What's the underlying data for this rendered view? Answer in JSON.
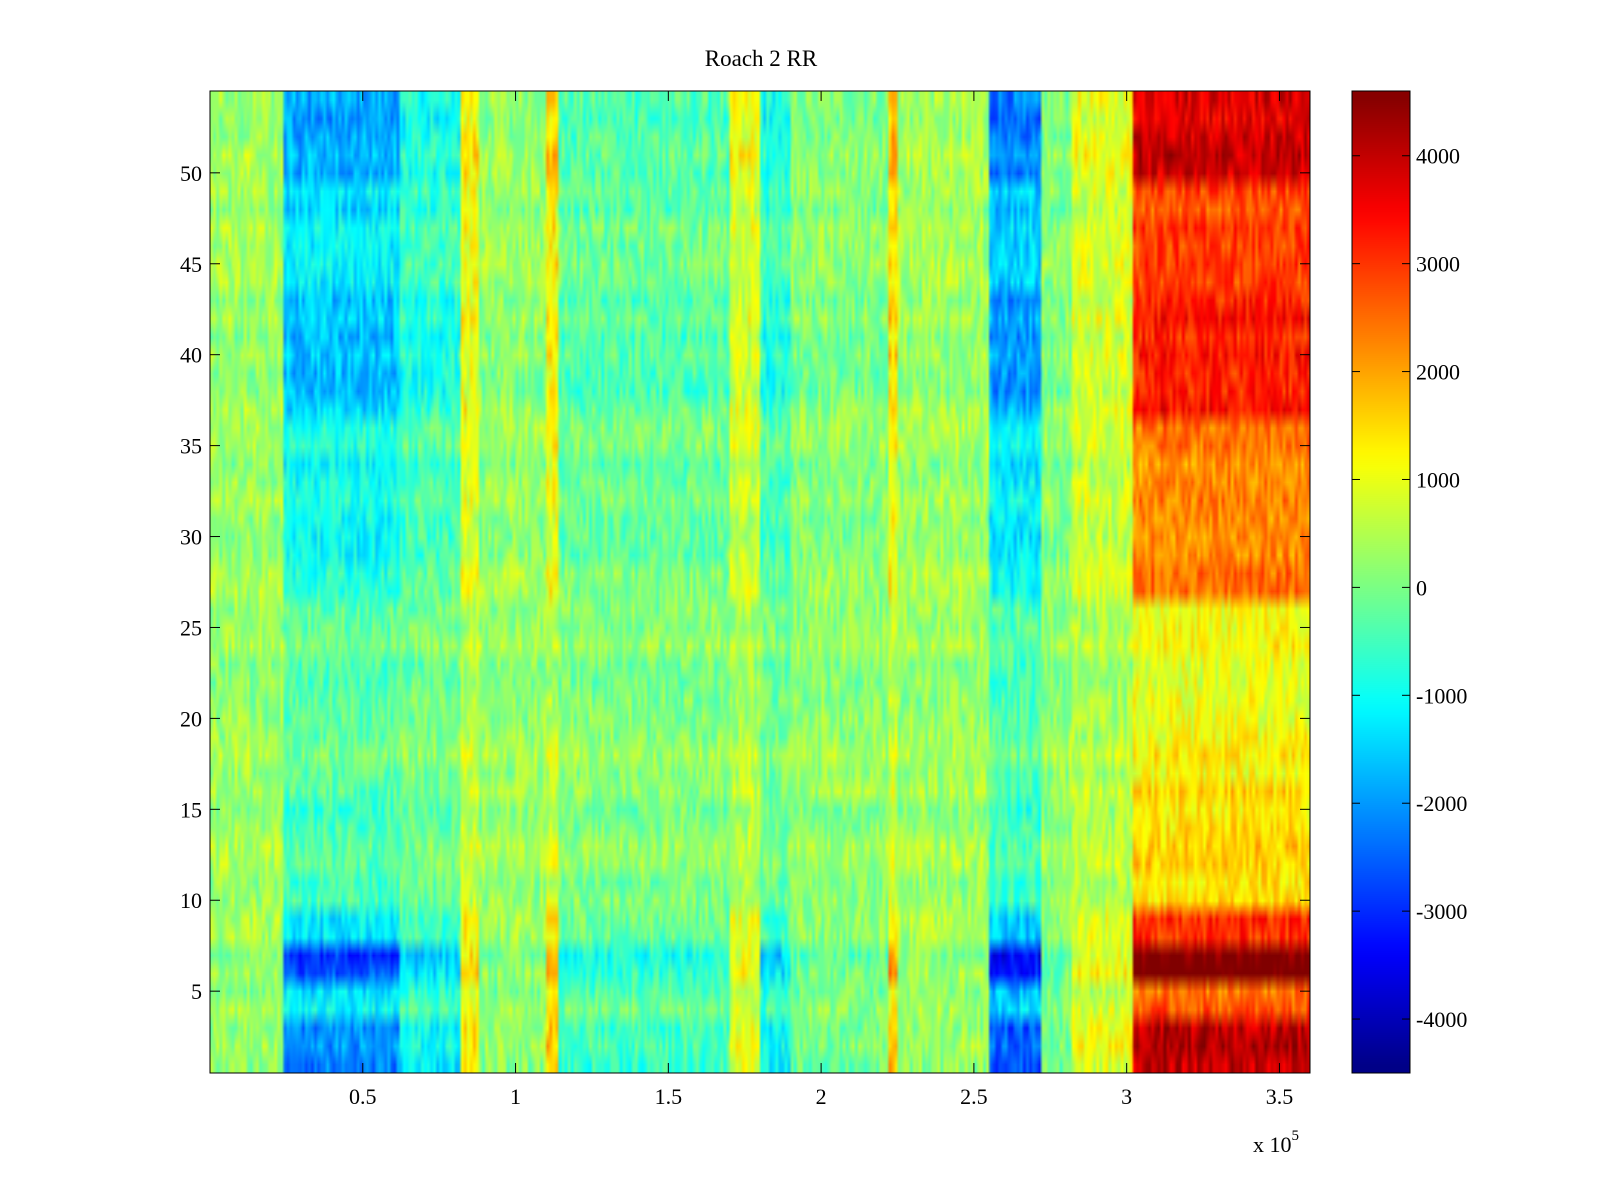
{
  "chart_data": {
    "type": "heatmap",
    "title": "Roach 2 RR",
    "xlabel": "",
    "ylabel": "",
    "x_exponent_label": "x 10",
    "x_exponent_power": "5",
    "xlim": [
      0,
      3.6
    ],
    "ylim": [
      0.5,
      54.5
    ],
    "rows": 54,
    "columns": 360,
    "x_ticks": [
      0.5,
      1,
      1.5,
      2,
      2.5,
      3,
      3.5
    ],
    "x_tick_labels": [
      "0.5",
      "1",
      "1.5",
      "2",
      "2.5",
      "3",
      "3.5"
    ],
    "y_ticks": [
      5,
      10,
      15,
      20,
      25,
      30,
      35,
      40,
      45,
      50
    ],
    "y_tick_labels": [
      "5",
      "10",
      "15",
      "20",
      "25",
      "30",
      "35",
      "40",
      "45",
      "50"
    ],
    "colormap": "jet",
    "clim": [
      -4500,
      4600
    ],
    "colorbar": {
      "ticks": [
        -4000,
        -3000,
        -2000,
        -1000,
        0,
        1000,
        2000,
        3000,
        4000
      ],
      "tick_labels": [
        "-4000",
        "-3000",
        "-2000",
        "-1000",
        "0",
        "1000",
        "2000",
        "3000",
        "4000"
      ]
    },
    "column_band_profile": {
      "description": "approximate mean value per x-region (x in units of 10^5)",
      "regions": [
        {
          "x_range": [
            0.0,
            0.24
          ],
          "mean": 300
        },
        {
          "x_range": [
            0.24,
            0.62
          ],
          "mean": -1800
        },
        {
          "x_range": [
            0.62,
            0.82
          ],
          "mean": -900
        },
        {
          "x_range": [
            0.82,
            0.88
          ],
          "mean": 1200
        },
        {
          "x_range": [
            0.88,
            1.1
          ],
          "mean": 200
        },
        {
          "x_range": [
            1.1,
            1.14
          ],
          "mean": 1500
        },
        {
          "x_range": [
            1.14,
            1.7
          ],
          "mean": -400
        },
        {
          "x_range": [
            1.7,
            1.8
          ],
          "mean": 900
        },
        {
          "x_range": [
            1.8,
            1.9
          ],
          "mean": -900
        },
        {
          "x_range": [
            1.9,
            2.22
          ],
          "mean": 0
        },
        {
          "x_range": [
            2.22,
            2.25
          ],
          "mean": 1700
        },
        {
          "x_range": [
            2.25,
            2.55
          ],
          "mean": 300
        },
        {
          "x_range": [
            2.55,
            2.72
          ],
          "mean": -2200
        },
        {
          "x_range": [
            2.72,
            2.82
          ],
          "mean": 0
        },
        {
          "x_range": [
            2.82,
            3.02
          ],
          "mean": 900
        },
        {
          "x_range": [
            3.02,
            3.6
          ],
          "mean": 3600
        }
      ]
    },
    "row_band_profile": {
      "description": "approximate multiplier of column contrast per y-row band",
      "bands": [
        {
          "y_range": [
            1,
            4
          ],
          "strength": 1.15
        },
        {
          "y_range": [
            4,
            6
          ],
          "strength": 0.7
        },
        {
          "y_range": [
            6,
            8
          ],
          "strength": 1.4
        },
        {
          "y_range": [
            8,
            10
          ],
          "strength": 0.8
        },
        {
          "y_range": [
            10,
            17
          ],
          "strength": 0.35
        },
        {
          "y_range": [
            17,
            27
          ],
          "strength": 0.25
        },
        {
          "y_range": [
            27,
            37
          ],
          "strength": 0.6
        },
        {
          "y_range": [
            37,
            44
          ],
          "strength": 0.9
        },
        {
          "y_range": [
            44,
            50
          ],
          "strength": 0.75
        },
        {
          "y_range": [
            50,
            55
          ],
          "strength": 1.05
        }
      ]
    }
  }
}
